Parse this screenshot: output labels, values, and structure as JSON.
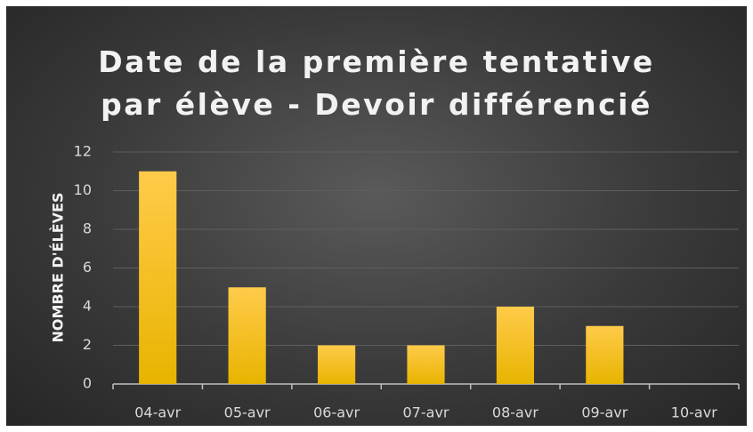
{
  "chart_data": {
    "type": "bar",
    "title": "Date de la première tentative par élève - Devoir différencié",
    "y_label": "NOMBRE D'ÉLÈVES",
    "categories": [
      "04-avr",
      "05-avr",
      "06-avr",
      "07-avr",
      "08-avr",
      "09-avr",
      "10-avr"
    ],
    "values": [
      11,
      5,
      2,
      2,
      4,
      3,
      0
    ],
    "color": "#ffc000",
    "ylim": [
      0,
      12
    ],
    "yticks": [
      0,
      2,
      4,
      6,
      8,
      10,
      12
    ],
    "grid": true
  }
}
